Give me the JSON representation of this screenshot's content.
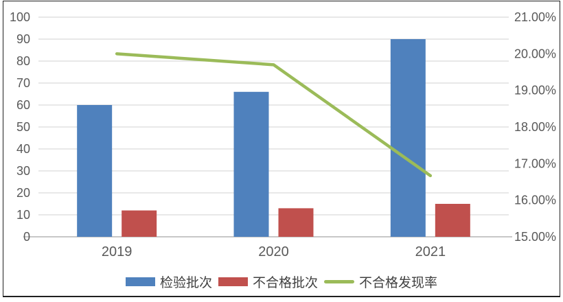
{
  "chart_data": {
    "type": "combo",
    "title": "",
    "categories": [
      "2019",
      "2020",
      "2021"
    ],
    "series": [
      {
        "name": "检验批次",
        "type": "bar",
        "axis": "left",
        "color": "#4F81BD",
        "values": [
          60,
          66,
          90
        ]
      },
      {
        "name": "不合格批次",
        "type": "bar",
        "axis": "left",
        "color": "#C0504D",
        "values": [
          12,
          13,
          15
        ]
      },
      {
        "name": "不合格发现率",
        "type": "line",
        "axis": "right",
        "color": "#9BBB59",
        "values": [
          20.0,
          19.7,
          16.67
        ],
        "unit": "%"
      }
    ],
    "left_axis": {
      "min": 0,
      "max": 100,
      "step": 10,
      "tick_labels": [
        "0",
        "10",
        "20",
        "30",
        "40",
        "50",
        "60",
        "70",
        "80",
        "90",
        "100"
      ]
    },
    "right_axis": {
      "min": 15,
      "max": 21,
      "step": 1,
      "tick_labels": [
        "15.00%",
        "16.00%",
        "17.00%",
        "18.00%",
        "19.00%",
        "20.00%",
        "21.00%"
      ]
    },
    "grid": true,
    "legend_position": "bottom"
  },
  "colors": {
    "background": "#FFFFFF",
    "frame_border": "#1F1F1F",
    "gridline": "#D9D9D9",
    "axis_line": "#BFBFBF",
    "tick_text": "#595959",
    "category_text": "#595959",
    "legend_text": "#404040"
  }
}
